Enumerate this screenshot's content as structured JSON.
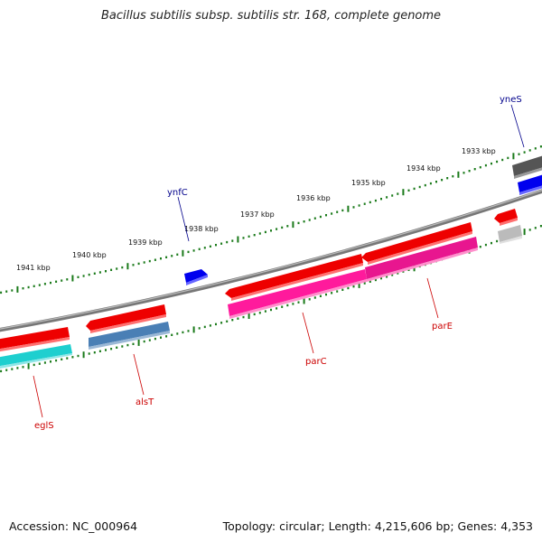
{
  "header": {
    "title": "Bacillus subtilis subsp. subtilis str. 168, complete genome"
  },
  "footer": {
    "accession": "Accession: NC_000964",
    "summary": "Topology: circular; Length: 4,215,606 bp; Genes: 4,353"
  },
  "scale": {
    "ticks": [
      {
        "label": "1941 kbp"
      },
      {
        "label": "1940 kbp"
      },
      {
        "label": "1939 kbp"
      },
      {
        "label": "1938 kbp"
      },
      {
        "label": "1937 kbp"
      },
      {
        "label": "1936 kbp"
      },
      {
        "label": "1935 kbp"
      },
      {
        "label": "1934 kbp"
      },
      {
        "label": "1933 kbp"
      }
    ]
  },
  "genes": [
    {
      "name": "yneS",
      "color": "#00008b"
    },
    {
      "name": "ynfC",
      "color": "#00008b"
    },
    {
      "name": "parE",
      "color": "#cc0000"
    },
    {
      "name": "parC",
      "color": "#cc0000"
    },
    {
      "name": "alsT",
      "color": "#cc0000"
    },
    {
      "name": "eglS",
      "color": "#cc0000"
    }
  ],
  "colors": {
    "backbone": "#808080",
    "tick": "#1a7a1a",
    "cds_red": "#ee0000",
    "pink": "#ff1a9c",
    "cyan": "#1ecfcf",
    "steel_blue": "#4a7fb5",
    "blue": "#0000ee",
    "dark_gray": "#555555",
    "light_gray": "#bbbbbb"
  }
}
